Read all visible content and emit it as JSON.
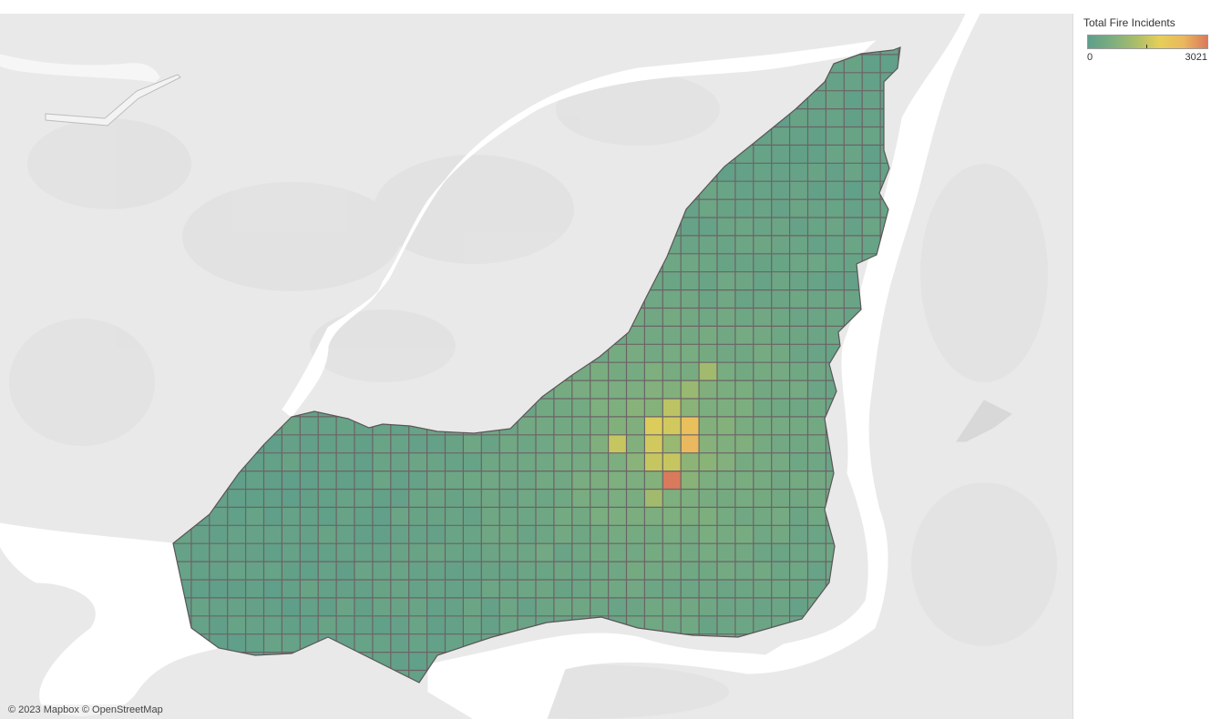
{
  "legend": {
    "title": "Total Fire Incidents",
    "min_label": "0",
    "max_label": "3021",
    "gradient": [
      "#5e9e8a",
      "#7cae7f",
      "#a9bd6a",
      "#e6cf58",
      "#eab75e",
      "#d97a5c"
    ]
  },
  "attribution": "© 2023 Mapbox © OpenStreetMap",
  "colors": {
    "land": "#e9e9e9",
    "water": "#ffffff",
    "grid_line": "#6b6466",
    "cell_low": "#6aa58e",
    "cell_mid": "#a9bd6a",
    "cell_high": "#e6cf58",
    "cell_peak": "#d97a5c"
  },
  "map": {
    "metric_range": [
      0,
      3021
    ],
    "hotspots": [
      {
        "col": 28,
        "row": 21,
        "value": 2200
      },
      {
        "col": 28,
        "row": 22,
        "value": 2400
      },
      {
        "col": 27,
        "row": 24,
        "value": 3021
      },
      {
        "col": 26,
        "row": 21,
        "value": 1700
      },
      {
        "col": 26,
        "row": 22,
        "value": 1600
      },
      {
        "col": 27,
        "row": 21,
        "value": 1600
      },
      {
        "col": 27,
        "row": 20,
        "value": 1400
      },
      {
        "col": 26,
        "row": 23,
        "value": 1500
      },
      {
        "col": 27,
        "row": 23,
        "value": 1500
      },
      {
        "col": 24,
        "row": 22,
        "value": 1500
      },
      {
        "col": 29,
        "row": 18,
        "value": 1100
      },
      {
        "col": 28,
        "row": 19,
        "value": 1000
      },
      {
        "col": 26,
        "row": 25,
        "value": 1100
      },
      {
        "col": 27,
        "row": 22,
        "value": 1000
      }
    ]
  }
}
